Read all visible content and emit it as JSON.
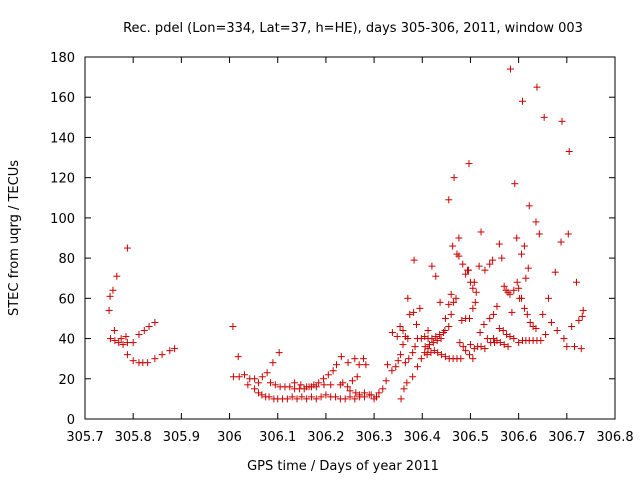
{
  "chart_data": {
    "type": "scatter",
    "title": "Rec. pdel (Lon=334, Lat=37, h=HE), days 305-306, 2011, window 003",
    "xlabel": "GPS time / Days of year 2011",
    "ylabel": "STEC from uqrg / TECUs",
    "xlim": [
      305.7,
      306.8
    ],
    "ylim": [
      0,
      180
    ],
    "xticks": [
      "305.7",
      "305.8",
      "305.9",
      "306",
      "306.1",
      "306.2",
      "306.3",
      "306.4",
      "306.5",
      "306.6",
      "306.7",
      "306.8"
    ],
    "yticks": [
      "0",
      "20",
      "40",
      "60",
      "80",
      "100",
      "120",
      "140",
      "160",
      "180"
    ],
    "grid": false,
    "legend": "none",
    "marker": "+",
    "color": "#cc0000",
    "series": [
      {
        "points": [
          [
            305.75,
            54
          ],
          [
            305.752,
            61
          ],
          [
            305.758,
            64
          ],
          [
            305.766,
            71
          ],
          [
            305.788,
            85
          ],
          [
            305.753,
            40
          ],
          [
            305.762,
            39
          ],
          [
            305.77,
            38
          ],
          [
            305.779,
            37
          ],
          [
            305.788,
            38
          ],
          [
            305.761,
            44
          ],
          [
            305.775,
            40
          ],
          [
            305.785,
            41
          ],
          [
            305.788,
            32
          ],
          [
            305.8,
            29
          ],
          [
            305.812,
            28
          ],
          [
            305.82,
            28
          ],
          [
            305.83,
            28
          ],
          [
            305.845,
            30
          ],
          [
            305.86,
            32
          ],
          [
            305.876,
            34
          ],
          [
            305.886,
            35
          ],
          [
            305.8,
            38
          ],
          [
            305.812,
            42
          ],
          [
            305.823,
            44
          ],
          [
            305.833,
            46
          ],
          [
            305.845,
            48
          ],
          [
            306.007,
            46
          ],
          [
            306.008,
            21
          ],
          [
            306.018,
            31
          ],
          [
            306.02,
            21
          ],
          [
            306.031,
            22
          ],
          [
            306.038,
            17
          ],
          [
            306.042,
            20
          ],
          [
            306.052,
            15
          ],
          [
            306.06,
            13
          ],
          [
            306.067,
            12
          ],
          [
            306.075,
            11
          ],
          [
            306.082,
            11
          ],
          [
            306.092,
            10
          ],
          [
            306.1,
            10
          ],
          [
            306.11,
            10
          ],
          [
            306.12,
            10
          ],
          [
            306.13,
            11
          ],
          [
            306.14,
            10
          ],
          [
            306.15,
            11
          ],
          [
            306.16,
            10
          ],
          [
            306.17,
            11
          ],
          [
            306.18,
            10
          ],
          [
            306.19,
            11
          ],
          [
            306.2,
            12
          ],
          [
            306.21,
            11
          ],
          [
            306.22,
            11
          ],
          [
            306.23,
            10
          ],
          [
            306.24,
            10
          ],
          [
            306.25,
            11
          ],
          [
            306.26,
            10
          ],
          [
            306.27,
            11
          ],
          [
            306.28,
            11
          ],
          [
            306.29,
            12
          ],
          [
            306.3,
            10
          ],
          [
            306.305,
            11
          ],
          [
            306.052,
            20
          ],
          [
            306.06,
            18
          ],
          [
            306.068,
            21
          ],
          [
            306.078,
            23
          ],
          [
            306.09,
            28
          ],
          [
            306.103,
            33
          ],
          [
            306.085,
            18
          ],
          [
            306.095,
            17
          ],
          [
            306.105,
            16
          ],
          [
            306.115,
            16
          ],
          [
            306.125,
            16
          ],
          [
            306.135,
            15
          ],
          [
            306.145,
            15
          ],
          [
            306.155,
            15
          ],
          [
            306.165,
            16
          ],
          [
            306.175,
            17
          ],
          [
            306.185,
            18
          ],
          [
            306.195,
            20
          ],
          [
            306.205,
            22
          ],
          [
            306.215,
            24
          ],
          [
            306.222,
            27
          ],
          [
            306.232,
            31
          ],
          [
            306.246,
            28
          ],
          [
            306.26,
            30
          ],
          [
            306.269,
            27
          ],
          [
            306.135,
            18
          ],
          [
            306.148,
            17
          ],
          [
            306.16,
            16
          ],
          [
            306.17,
            16
          ],
          [
            306.18,
            16
          ],
          [
            306.196,
            17
          ],
          [
            306.21,
            17
          ],
          [
            306.23,
            17
          ],
          [
            306.25,
            14
          ],
          [
            306.262,
            13
          ],
          [
            306.27,
            12
          ],
          [
            306.28,
            13
          ],
          [
            306.294,
            12
          ],
          [
            306.305,
            11
          ],
          [
            306.235,
            18
          ],
          [
            306.245,
            16
          ],
          [
            306.255,
            19
          ],
          [
            306.265,
            21
          ],
          [
            306.278,
            30
          ],
          [
            306.283,
            27
          ],
          [
            306.31,
            13
          ],
          [
            306.318,
            15
          ],
          [
            306.325,
            19
          ],
          [
            306.328,
            27
          ],
          [
            306.337,
            24
          ],
          [
            306.345,
            26
          ],
          [
            306.35,
            29
          ],
          [
            306.355,
            32
          ],
          [
            306.36,
            37
          ],
          [
            306.338,
            43
          ],
          [
            306.348,
            41
          ],
          [
            306.354,
            46
          ],
          [
            306.36,
            44
          ],
          [
            306.365,
            41
          ],
          [
            306.365,
            28
          ],
          [
            306.372,
            30
          ],
          [
            306.38,
            33
          ],
          [
            306.385,
            36
          ],
          [
            306.39,
            40
          ],
          [
            306.37,
            40
          ],
          [
            306.374,
            52
          ],
          [
            306.382,
            53
          ],
          [
            306.383,
            79
          ],
          [
            306.388,
            47
          ],
          [
            306.37,
            60
          ],
          [
            306.356,
            10
          ],
          [
            306.362,
            15
          ],
          [
            306.368,
            18
          ],
          [
            306.38,
            21
          ],
          [
            306.39,
            26
          ],
          [
            306.398,
            30
          ],
          [
            306.405,
            33
          ],
          [
            306.412,
            35
          ],
          [
            306.395,
            55
          ],
          [
            306.406,
            36
          ],
          [
            306.412,
            44
          ],
          [
            306.42,
            76
          ],
          [
            306.428,
            71
          ],
          [
            306.398,
            40
          ],
          [
            306.405,
            41
          ],
          [
            306.412,
            40
          ],
          [
            306.42,
            40
          ],
          [
            306.428,
            41
          ],
          [
            306.436,
            42
          ],
          [
            306.444,
            43
          ],
          [
            306.41,
            32
          ],
          [
            306.418,
            33
          ],
          [
            306.425,
            34
          ],
          [
            306.432,
            33
          ],
          [
            306.44,
            32
          ],
          [
            306.448,
            31
          ],
          [
            306.456,
            30
          ],
          [
            306.464,
            30
          ],
          [
            306.472,
            30
          ],
          [
            306.48,
            30
          ],
          [
            306.415,
            37
          ],
          [
            306.423,
            38
          ],
          [
            306.431,
            39
          ],
          [
            306.439,
            40
          ],
          [
            306.447,
            44
          ],
          [
            306.455,
            46
          ],
          [
            306.46,
            52
          ],
          [
            306.465,
            58
          ],
          [
            306.437,
            58
          ],
          [
            306.448,
            50
          ],
          [
            306.455,
            57
          ],
          [
            306.46,
            62
          ],
          [
            306.47,
            60
          ],
          [
            306.455,
            109
          ],
          [
            306.463,
            86
          ],
          [
            306.466,
            120
          ],
          [
            306.472,
            82
          ],
          [
            306.476,
            90
          ],
          [
            306.476,
            81
          ],
          [
            306.484,
            77
          ],
          [
            306.49,
            72
          ],
          [
            306.494,
            74
          ],
          [
            306.496,
            74
          ],
          [
            306.497,
            127
          ],
          [
            306.5,
            68
          ],
          [
            306.505,
            65
          ],
          [
            306.508,
            68
          ],
          [
            306.512,
            63
          ],
          [
            306.478,
            38
          ],
          [
            306.485,
            36
          ],
          [
            306.49,
            34
          ],
          [
            306.498,
            32
          ],
          [
            306.505,
            30
          ],
          [
            306.482,
            49
          ],
          [
            306.49,
            50
          ],
          [
            306.498,
            50
          ],
          [
            306.505,
            55
          ],
          [
            306.51,
            58
          ],
          [
            306.5,
            37
          ],
          [
            306.508,
            35
          ],
          [
            306.515,
            36
          ],
          [
            306.522,
            36
          ],
          [
            306.53,
            35
          ],
          [
            306.518,
            76
          ],
          [
            306.522,
            93
          ],
          [
            306.53,
            74
          ],
          [
            306.54,
            77
          ],
          [
            306.546,
            79
          ],
          [
            306.52,
            43
          ],
          [
            306.528,
            47
          ],
          [
            306.535,
            40
          ],
          [
            306.542,
            38
          ],
          [
            306.55,
            38
          ],
          [
            306.54,
            50
          ],
          [
            306.548,
            52
          ],
          [
            306.555,
            56
          ],
          [
            306.56,
            87
          ],
          [
            306.565,
            80
          ],
          [
            306.57,
            66
          ],
          [
            306.574,
            64
          ],
          [
            306.578,
            63
          ],
          [
            306.582,
            62
          ],
          [
            306.586,
            53
          ],
          [
            306.548,
            40
          ],
          [
            306.555,
            39
          ],
          [
            306.562,
            38
          ],
          [
            306.57,
            37
          ],
          [
            306.578,
            36
          ],
          [
            306.56,
            45
          ],
          [
            306.568,
            44
          ],
          [
            306.575,
            42
          ],
          [
            306.582,
            41
          ],
          [
            306.59,
            40
          ],
          [
            306.583,
            174
          ],
          [
            306.592,
            117
          ],
          [
            306.596,
            90
          ],
          [
            306.602,
            60
          ],
          [
            306.606,
            82
          ],
          [
            306.608,
            158
          ],
          [
            306.612,
            86
          ],
          [
            306.615,
            70
          ],
          [
            306.62,
            75
          ],
          [
            306.622,
            106
          ],
          [
            306.59,
            64
          ],
          [
            306.597,
            68
          ],
          [
            306.6,
            65
          ],
          [
            306.606,
            60
          ],
          [
            306.612,
            55
          ],
          [
            306.618,
            52
          ],
          [
            306.624,
            48
          ],
          [
            306.63,
            46
          ],
          [
            306.636,
            45
          ],
          [
            306.6,
            38
          ],
          [
            306.608,
            39
          ],
          [
            306.615,
            39
          ],
          [
            306.622,
            39
          ],
          [
            306.63,
            39
          ],
          [
            306.638,
            39
          ],
          [
            306.646,
            39
          ],
          [
            306.636,
            98
          ],
          [
            306.638,
            165
          ],
          [
            306.643,
            92
          ],
          [
            306.65,
            52
          ],
          [
            306.653,
            150
          ],
          [
            306.656,
            42
          ],
          [
            306.662,
            60
          ],
          [
            306.668,
            48
          ],
          [
            306.676,
            73
          ],
          [
            306.68,
            44
          ],
          [
            306.688,
            88
          ],
          [
            306.69,
            148
          ],
          [
            306.694,
            40
          ],
          [
            306.7,
            36
          ],
          [
            306.703,
            92
          ],
          [
            306.705,
            133
          ],
          [
            306.71,
            46
          ],
          [
            306.716,
            36
          ],
          [
            306.72,
            68
          ],
          [
            306.725,
            49
          ],
          [
            306.73,
            35
          ],
          [
            306.732,
            51
          ],
          [
            306.734,
            54
          ]
        ]
      }
    ]
  }
}
